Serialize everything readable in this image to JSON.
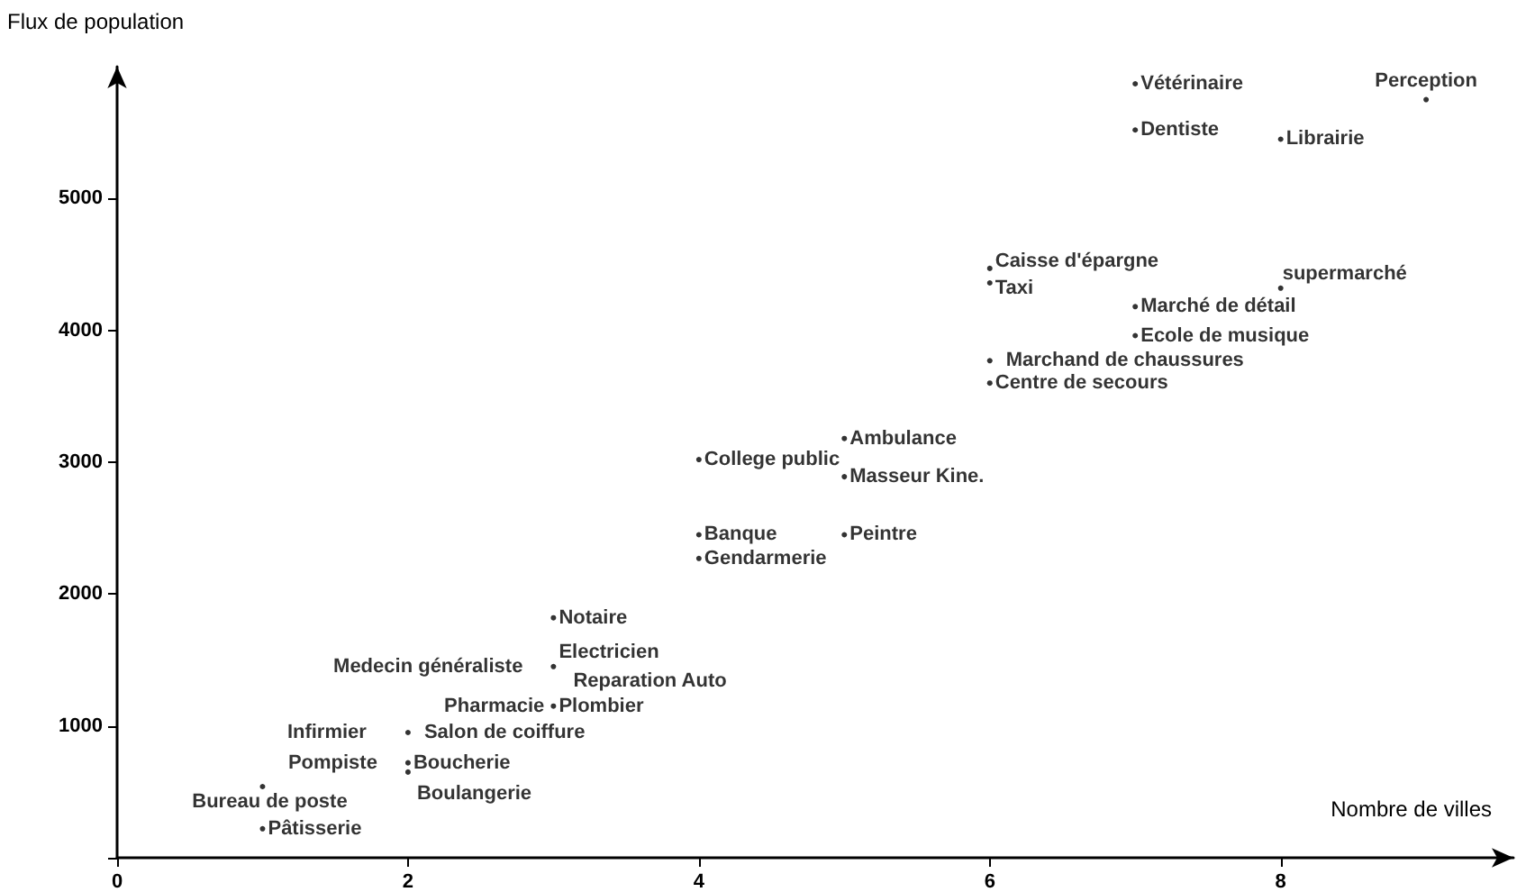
{
  "chart_data": {
    "type": "scatter",
    "xlabel": "Nombre de villes",
    "ylabel": "Flux de population",
    "x": [
      1,
      1,
      2,
      2,
      2,
      3,
      3,
      3,
      4,
      4,
      4,
      5,
      5,
      5,
      6,
      6,
      6,
      6,
      7,
      7,
      7,
      7,
      8,
      8,
      9
    ],
    "series": [
      {
        "color": "#000000",
        "values": [
          220,
          540,
          720,
          650,
          950,
          1150,
          1450,
          1820,
          2450,
          2270,
          3020,
          3180,
          2890,
          2450,
          3600,
          3770,
          4360,
          4470,
          3960,
          4180,
          5520,
          5870,
          4320,
          5450,
          5750
        ]
      }
    ],
    "xlim": [
      0,
      9.6
    ],
    "ylim": [
      0,
      6000
    ],
    "xticks": [
      0,
      2,
      4,
      6,
      8
    ],
    "yticks": [
      {
        "value": 0,
        "label": null
      },
      1000,
      2000,
      3000,
      4000,
      5000
    ],
    "grid": false,
    "marker": "circle",
    "annotations": [
      {
        "text": "Pâtisserie",
        "x": 1,
        "y": 220
      },
      {
        "text": "Bureau de poste",
        "x": 1,
        "y": 540
      },
      {
        "text": "Pompiste",
        "x": 2,
        "y": 720
      },
      {
        "text": "Boucherie",
        "x": 2,
        "y": 720
      },
      {
        "text": "Boulangerie",
        "x": 2,
        "y": 650
      },
      {
        "text": "Infirmier",
        "x": 2,
        "y": 950
      },
      {
        "text": "Salon de coiffure",
        "x": 2,
        "y": 950
      },
      {
        "text": "Pharmacie",
        "x": 3,
        "y": 1150
      },
      {
        "text": "Plombier",
        "x": 3,
        "y": 1150
      },
      {
        "text": "Medecin généraliste",
        "x": 3,
        "y": 1450
      },
      {
        "text": "Electricien",
        "x": 3,
        "y": 1450
      },
      {
        "text": "Reparation Auto",
        "x": 3,
        "y": 1450
      },
      {
        "text": "Notaire",
        "x": 3,
        "y": 1820
      },
      {
        "text": "Banque",
        "x": 4,
        "y": 2450
      },
      {
        "text": "Gendarmerie",
        "x": 4,
        "y": 2270
      },
      {
        "text": "College public",
        "x": 4,
        "y": 3020
      },
      {
        "text": "Ambulance",
        "x": 5,
        "y": 3180
      },
      {
        "text": "Masseur Kine.",
        "x": 5,
        "y": 2890
      },
      {
        "text": "Peintre",
        "x": 5,
        "y": 2450
      },
      {
        "text": "Centre de secours",
        "x": 6,
        "y": 3600
      },
      {
        "text": "Marchand de chaussures",
        "x": 6,
        "y": 3770
      },
      {
        "text": "Taxi",
        "x": 6,
        "y": 4360
      },
      {
        "text": "Caisse d'épargne",
        "x": 6,
        "y": 4470
      },
      {
        "text": "Ecole de musique",
        "x": 7,
        "y": 3960
      },
      {
        "text": "Marché de détail",
        "x": 7,
        "y": 4180
      },
      {
        "text": "Dentiste",
        "x": 7,
        "y": 5520
      },
      {
        "text": "Vétérinaire",
        "x": 7,
        "y": 5870
      },
      {
        "text": "supermarché",
        "x": 8,
        "y": 4320
      },
      {
        "text": "Librairie",
        "x": 8,
        "y": 5450
      },
      {
        "text": "Perception",
        "x": 9,
        "y": 5750
      }
    ]
  }
}
